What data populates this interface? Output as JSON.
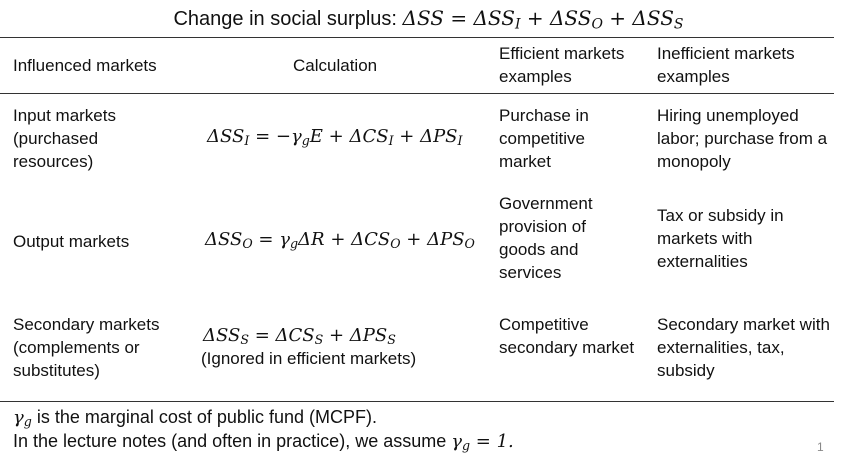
{
  "title": {
    "text": "Change in social surplus: ",
    "formula": "ΔSS = ΔSS_I + ΔSS_O + ΔSS_S"
  },
  "headers": {
    "col1": "Influenced markets",
    "col2": "Calculation",
    "col3": "Efficient markets examples",
    "col4": "Inefficient markets examples"
  },
  "rows": [
    {
      "market": "Input markets (purchased resources)",
      "calc": "ΔSS_I = −γ_g E + ΔCS_I + ΔPS_I",
      "efficient": "Purchase in competitive market",
      "inefficient": "Hiring unemployed labor; purchase from a monopoly"
    },
    {
      "market": "Output markets",
      "calc": "ΔSS_O = γ_g ΔR + ΔCS_O + ΔPS_O",
      "efficient": "Government provision of goods and services",
      "inefficient": "Tax or subsidy in markets with externalities"
    },
    {
      "market": "Secondary markets (complements or substitutes)",
      "calc": "ΔSS_S = ΔCS_S + ΔPS_S",
      "calc_note": "(Ignored in efficient markets)",
      "efficient": "Competitive secondary market",
      "inefficient": "Secondary market with externalities, tax, subsidy"
    }
  ],
  "footnotes": {
    "line1_symbol": "γ_g",
    "line1_text": " is the marginal cost of public fund (MCPF).",
    "line2_text": "In the lecture notes (and often in practice), we assume ",
    "line2_formula": "γ_g = 1."
  },
  "page_number": "1"
}
